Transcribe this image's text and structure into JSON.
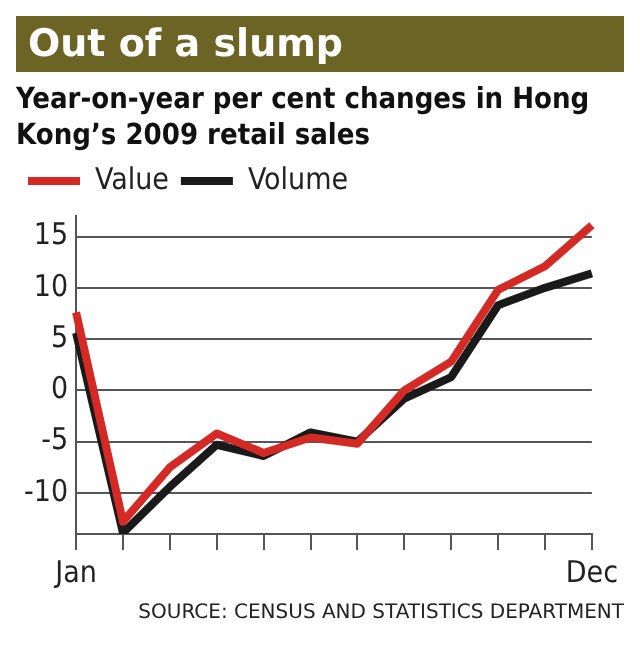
{
  "chart_data": {
    "type": "line",
    "title": "Out of a slump",
    "subtitle": "Year-on-year per cent changes in Hong Kong’s 2009 retail sales",
    "categories": [
      "Jan",
      null,
      null,
      null,
      null,
      null,
      null,
      null,
      null,
      null,
      null,
      "Dec"
    ],
    "series": [
      {
        "name": "Value",
        "color": "#d42a26",
        "values": [
          7.6,
          -12.8,
          -7.5,
          -4.2,
          -6.1,
          -4.6,
          -5.2,
          0,
          2.8,
          9.8,
          12.1,
          16.1
        ]
      },
      {
        "name": "Volume",
        "color": "#1a1a1a",
        "values": [
          5.6,
          -13.9,
          -9.4,
          -5.3,
          -6.4,
          -4.1,
          -5.0,
          -0.8,
          1.3,
          8.3,
          10.0,
          11.4
        ]
      }
    ],
    "ylim": [
      -14,
      17
    ],
    "yticks": [
      -10,
      -5,
      0,
      5,
      10,
      15
    ],
    "grid": "y",
    "legend": "top left",
    "marker": "none",
    "annotations": [
      "SOURCE: CENSUS AND STATISTICS DEPARTMENT"
    ]
  }
}
